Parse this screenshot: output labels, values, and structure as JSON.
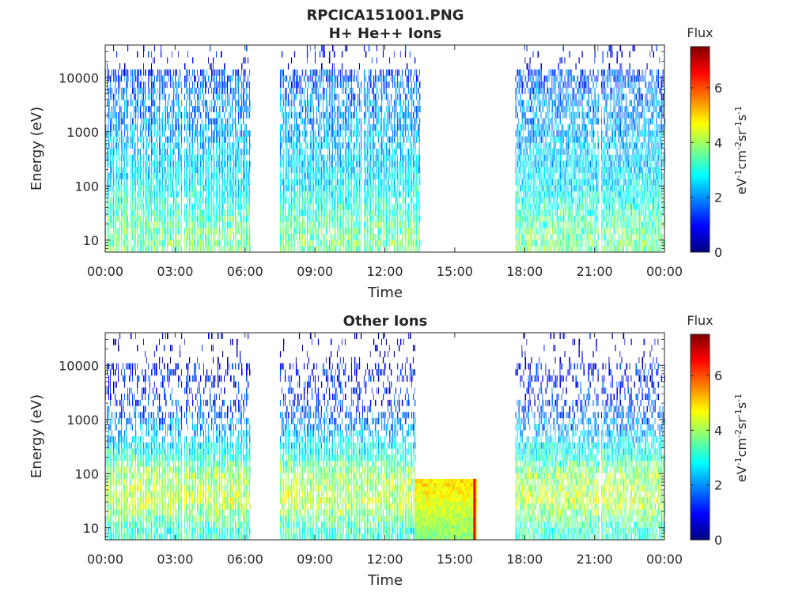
{
  "figure": {
    "title": "RPCICA151001.PNG"
  },
  "colorscale": {
    "stops": [
      "#00007f",
      "#0000ff",
      "#007fff",
      "#00ffff",
      "#7fff7f",
      "#ffff00",
      "#ff7f00",
      "#ff0000",
      "#7f0000"
    ],
    "empty": "#ffffff"
  },
  "chart_data": [
    {
      "type": "heatmap",
      "title": "H+ He++ Ions",
      "xlabel": "Time",
      "ylabel": "Energy (eV)",
      "x_ticks": [
        "00:00",
        "03:00",
        "06:00",
        "09:00",
        "12:00",
        "15:00",
        "18:00",
        "21:00",
        "00:00"
      ],
      "xlim_hours": [
        0,
        24
      ],
      "y_scale": "log",
      "y_ticks": [
        "10",
        "100",
        "1000",
        "10000"
      ],
      "ylim": [
        6,
        40000
      ],
      "colorbar": {
        "label": "Flux",
        "unit_base": "eV",
        "unit_exp1": "-1",
        "unit_mid": "cm",
        "unit_exp2": "-2",
        "unit_sr": "sr",
        "unit_exp3": "-1",
        "unit_s": "s",
        "unit_exp4": "-1",
        "ticks": [
          "0",
          "2",
          "4",
          "6"
        ],
        "range": [
          0,
          7.5
        ]
      },
      "data_intervals_hours": [
        [
          0,
          6.2
        ],
        [
          7.5,
          13.5
        ],
        [
          17.6,
          24
        ]
      ],
      "data_gap_lines_hours": [
        1.0,
        3.3,
        11.0,
        21.2
      ],
      "flux_profile": [
        {
          "energy_eV": 10,
          "flux": 3.7
        },
        {
          "energy_eV": 30,
          "flux": 3.3
        },
        {
          "energy_eV": 100,
          "flux": 2.8
        },
        {
          "energy_eV": 300,
          "flux": 2.5
        },
        {
          "energy_eV": 1000,
          "flux": 2.2
        },
        {
          "energy_eV": 3000,
          "flux": 2.0
        },
        {
          "energy_eV": 10000,
          "flux": 1.6
        },
        {
          "energy_eV": 15000,
          "flux": 1.3
        },
        {
          "energy_eV": 40000,
          "flux": 1.5
        }
      ]
    },
    {
      "type": "heatmap",
      "title": "Other Ions",
      "xlabel": "Time",
      "ylabel": "Energy (eV)",
      "x_ticks": [
        "00:00",
        "03:00",
        "06:00",
        "09:00",
        "12:00",
        "15:00",
        "18:00",
        "21:00",
        "00:00"
      ],
      "xlim_hours": [
        0,
        24
      ],
      "y_scale": "log",
      "y_ticks": [
        "10",
        "100",
        "1000",
        "10000"
      ],
      "ylim": [
        6,
        40000
      ],
      "colorbar": {
        "label": "Flux",
        "unit_base": "eV",
        "unit_exp1": "-1",
        "unit_mid": "cm",
        "unit_exp2": "-2",
        "unit_sr": "sr",
        "unit_exp3": "-1",
        "unit_s": "s",
        "unit_exp4": "-1",
        "ticks": [
          "0",
          "2",
          "4",
          "6"
        ],
        "range": [
          0,
          7.5
        ]
      },
      "data_intervals_hours": [
        [
          0,
          6.2
        ],
        [
          7.5,
          13.3
        ],
        [
          17.6,
          24
        ]
      ],
      "special_block": {
        "x_hours": [
          13.3,
          15.9
        ],
        "energy_eV": [
          6,
          80
        ],
        "flux_low": 5.0,
        "flux_high": 3.8
      },
      "data_gap_lines_hours": [
        3.3,
        21.2
      ],
      "flux_profile": [
        {
          "energy_eV": 10,
          "flux": 3.2
        },
        {
          "energy_eV": 30,
          "flux": 4.3
        },
        {
          "energy_eV": 100,
          "flux": 3.9
        },
        {
          "energy_eV": 300,
          "flux": 2.8
        },
        {
          "energy_eV": 1000,
          "flux": 1.8
        },
        {
          "energy_eV": 3000,
          "flux": 1.2
        },
        {
          "energy_eV": 10000,
          "flux": 1.0
        }
      ]
    }
  ]
}
